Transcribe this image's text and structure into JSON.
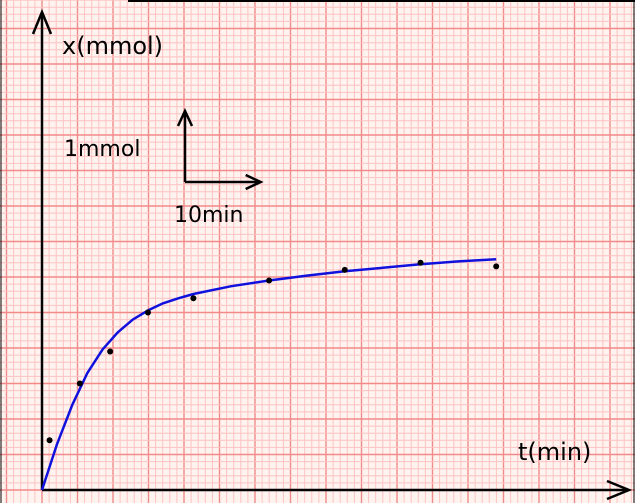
{
  "chart_data": {
    "type": "scatter",
    "xlabel": "t(min)",
    "ylabel": "x(mmol)",
    "x_unit_label": "10min",
    "y_unit_label": "1mmol",
    "xlim": [
      0,
      80
    ],
    "ylim": [
      0,
      6.4
    ],
    "grid": true,
    "points": [
      {
        "x": 1,
        "y": 0.7
      },
      {
        "x": 5,
        "y": 1.5
      },
      {
        "x": 9,
        "y": 1.95
      },
      {
        "x": 14,
        "y": 2.5
      },
      {
        "x": 20,
        "y": 2.7
      },
      {
        "x": 30,
        "y": 2.95
      },
      {
        "x": 40,
        "y": 3.1
      },
      {
        "x": 50,
        "y": 3.2
      },
      {
        "x": 60,
        "y": 3.15
      }
    ],
    "fit_curve": {
      "x": [
        0,
        2,
        4,
        6,
        8,
        10,
        12,
        14,
        16,
        18,
        20,
        25,
        30,
        35,
        40,
        45,
        50,
        55,
        60
      ],
      "y": [
        0,
        0.65,
        1.2,
        1.65,
        1.98,
        2.22,
        2.4,
        2.53,
        2.63,
        2.7,
        2.76,
        2.87,
        2.95,
        3.02,
        3.08,
        3.13,
        3.18,
        3.22,
        3.25
      ]
    },
    "colors": {
      "background": "#fff3ef",
      "grid_minor": "#fdc2c2",
      "grid_major": "#f28a8a",
      "curve": "#1111dd",
      "points": "#000000",
      "axes": "#000000"
    }
  }
}
